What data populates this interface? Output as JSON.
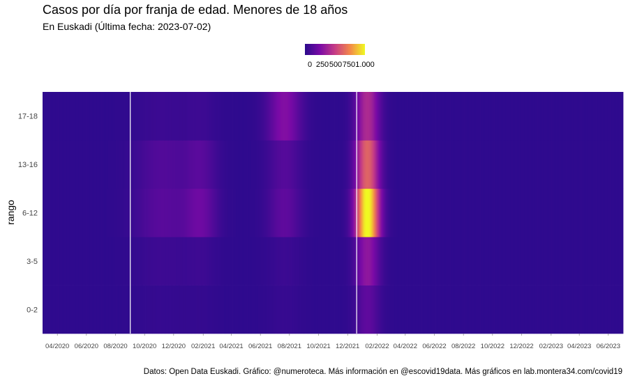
{
  "header": {
    "title": "Casos por día por franja de edad. Menores de 18 años",
    "subtitle": "En Euskadi  (Última fecha: 2023-07-02)"
  },
  "caption": "Datos: Open Data Euskadi. Gráfico: @numeroteca. Más información en @escovid19data.  Más gráficos en lab.montera34.com/covid19",
  "legend": {
    "colors": [
      "#2a0a8c",
      "#7a0aa6",
      "#c63c85",
      "#f3874a",
      "#f0f921"
    ],
    "ticks": [
      {
        "value": 0,
        "label": "0"
      },
      {
        "value": 250,
        "label": "250"
      },
      {
        "value": 500,
        "label": "500"
      },
      {
        "value": 750,
        "label": "750"
      },
      {
        "value": 1000,
        "label": "1.000"
      }
    ]
  },
  "chart_data": {
    "type": "heatmap",
    "title": "Casos por día por franja de edad. Menores de 18 años",
    "subtitle": "En Euskadi  (Última fecha: 2023-07-02)",
    "ylabel": "rango",
    "xlabel": "",
    "y_categories": [
      "0-2",
      "3-5",
      "6-12",
      "13-16",
      "17-18"
    ],
    "x_range": [
      "2020-03-01",
      "2023-07-02"
    ],
    "x_ticks": [
      "04/2020",
      "06/2020",
      "08/2020",
      "10/2020",
      "12/2020",
      "02/2021",
      "04/2021",
      "06/2021",
      "08/2021",
      "10/2021",
      "12/2021",
      "02/2022",
      "04/2022",
      "06/2022",
      "08/2022",
      "10/2022",
      "12/2022",
      "02/2023",
      "04/2023",
      "06/2023"
    ],
    "color_scale": {
      "palette": "plasma",
      "min": 0,
      "max": 1000
    },
    "vertical_lines": [
      "2020-09-01",
      "2021-12-20"
    ],
    "grid": false,
    "legend_position": "top",
    "baseline_value": 15,
    "waves": [
      {
        "center": "2020-11-05",
        "width_days": 40,
        "values": {
          "0-2": 20,
          "3-5": 45,
          "6-12": 130,
          "13-16": 110,
          "17-18": 40
        }
      },
      {
        "center": "2021-01-25",
        "width_days": 25,
        "values": {
          "0-2": 15,
          "3-5": 40,
          "6-12": 180,
          "13-16": 120,
          "17-18": 40
        }
      },
      {
        "center": "2021-07-20",
        "width_days": 25,
        "values": {
          "0-2": 25,
          "3-5": 40,
          "6-12": 150,
          "13-16": 120,
          "17-18": 260
        }
      },
      {
        "center": "2022-01-10",
        "width_days": 18,
        "values": {
          "0-2": 150,
          "3-5": 300,
          "6-12": 1000,
          "13-16": 620,
          "17-18": 400
        }
      }
    ]
  }
}
